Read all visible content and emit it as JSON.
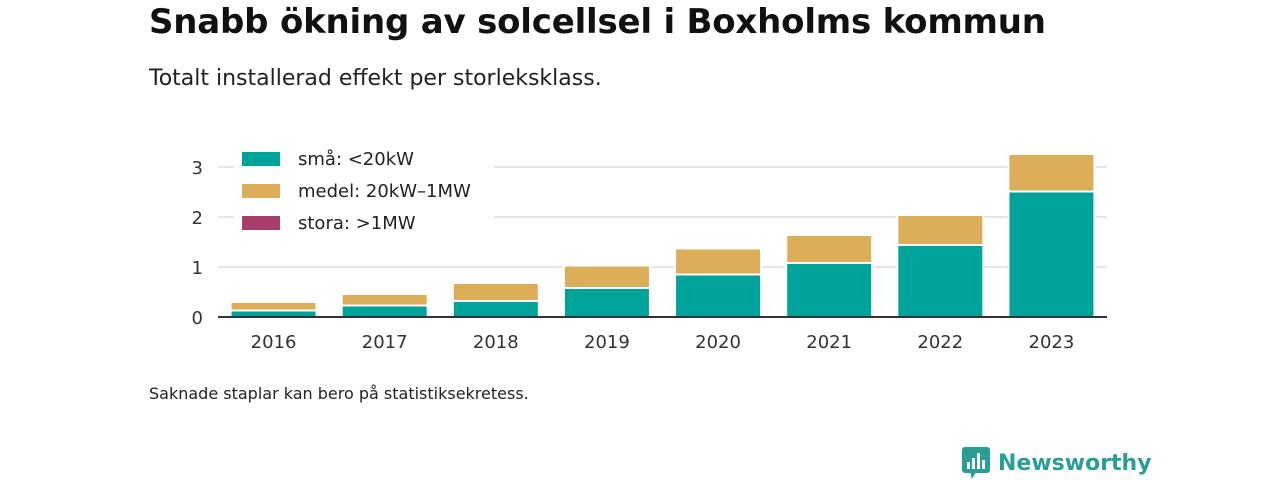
{
  "header": {
    "title": "Snabb ökning av solcellsel i Boxholms kommun",
    "subtitle": "Totalt installerad effekt per storleksklass."
  },
  "footer": {
    "note": "Saknade staplar kan bero på statistiksekretess.",
    "brand": "Newsworthy"
  },
  "colors": {
    "small": "#00a39a",
    "medium": "#dcae5a",
    "large": "#a63d6a",
    "grid": "#dddddd",
    "axis": "#333333",
    "brand": "#2a9d96"
  },
  "chart_data": {
    "type": "bar",
    "stacked": true,
    "categories": [
      "2016",
      "2017",
      "2018",
      "2019",
      "2020",
      "2021",
      "2022",
      "2023"
    ],
    "series": [
      {
        "name": "små: <20kW",
        "values": [
          0.13,
          0.23,
          0.32,
          0.58,
          0.85,
          1.08,
          1.44,
          2.51
        ]
      },
      {
        "name": "medel: 20kW–1MW",
        "values": [
          0.17,
          0.23,
          0.36,
          0.45,
          0.52,
          0.56,
          0.6,
          0.75
        ]
      },
      {
        "name": "stora: >1MW",
        "values": [
          0,
          0,
          0,
          0,
          0,
          0,
          0,
          0
        ]
      }
    ],
    "yticks": [
      0,
      1,
      2,
      3
    ],
    "ylim": [
      0,
      3.3
    ],
    "grid": true,
    "legend": "top-left"
  }
}
